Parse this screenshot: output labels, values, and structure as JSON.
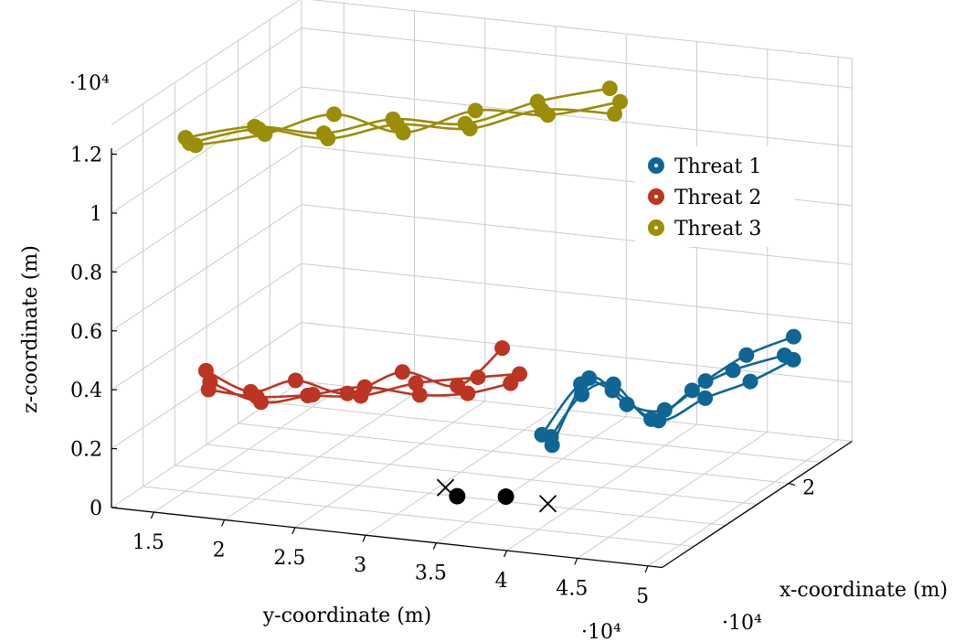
{
  "chart_data": {
    "type": "scatter",
    "subtype": "3d-trajectories",
    "title": "",
    "xlabel": "x-coordinate (m)",
    "ylabel": "y-coordinate (m)",
    "zlabel": "z-coordinate (m)",
    "x_multiplier": "·10⁴",
    "y_multiplier": "·10⁴",
    "z_multiplier": "·10⁴",
    "xlim": [
      0,
      3
    ],
    "ylim": [
      1.2,
      5.1
    ],
    "zlim": [
      0,
      1.3
    ],
    "x_ticks": [
      2
    ],
    "x_tick_labels": [
      "2"
    ],
    "y_ticks": [
      1.5,
      2,
      2.5,
      3,
      3.5,
      4,
      4.5,
      5
    ],
    "y_tick_labels": [
      "1.5",
      "2",
      "2.5",
      "3",
      "3.5",
      "4",
      "4.5",
      "5"
    ],
    "z_ticks": [
      0,
      0.2,
      0.4,
      0.6,
      0.8,
      1,
      1.2
    ],
    "z_tick_labels": [
      "0",
      "0.2",
      "0.4",
      "0.6",
      "0.8",
      "1",
      "1.2"
    ],
    "grid": true,
    "legend_position": "top-right",
    "colors": {
      "threat1": "#0f6694",
      "threat2": "#bb3522",
      "threat3": "#9a8d07",
      "grid": "#cccccc",
      "axis": "#000000"
    },
    "series": [
      {
        "name": "Threat 1",
        "color": "#0f6694",
        "marker": "filled-circle",
        "curves": [
          [
            [
              1.1,
              3.82,
              0.22
            ],
            [
              1.25,
              3.97,
              0.35
            ],
            [
              1.35,
              4.15,
              0.38
            ],
            [
              1.5,
              4.35,
              0.25
            ],
            [
              1.7,
              4.55,
              0.33
            ],
            [
              1.9,
              4.75,
              0.38
            ],
            [
              2.2,
              4.98,
              0.4
            ]
          ],
          [
            [
              1.05,
              3.85,
              0.2
            ],
            [
              1.3,
              4.0,
              0.4
            ],
            [
              1.45,
              4.2,
              0.3
            ],
            [
              1.6,
              4.4,
              0.27
            ],
            [
              1.8,
              4.6,
              0.35
            ],
            [
              2.0,
              4.8,
              0.42
            ],
            [
              2.3,
              5.0,
              0.45
            ]
          ],
          [
            [
              1.0,
              3.8,
              0.24
            ],
            [
              1.28,
              3.95,
              0.38
            ],
            [
              1.4,
              4.12,
              0.35
            ],
            [
              1.55,
              4.38,
              0.24
            ],
            [
              1.75,
              4.62,
              0.3
            ],
            [
              1.95,
              4.85,
              0.34
            ],
            [
              2.25,
              5.02,
              0.38
            ]
          ]
        ]
      },
      {
        "name": "Threat 2",
        "color": "#bb3522",
        "marker": "filled-circle",
        "curves": [
          [
            [
              0.6,
              1.6,
              0.4
            ],
            [
              0.75,
              1.85,
              0.32
            ],
            [
              0.9,
              2.1,
              0.35
            ],
            [
              1.05,
              2.4,
              0.3
            ],
            [
              1.25,
              2.7,
              0.36
            ],
            [
              1.45,
              3.0,
              0.3
            ],
            [
              1.6,
              3.25,
              0.42
            ]
          ],
          [
            [
              0.62,
              1.62,
              0.36
            ],
            [
              0.8,
              1.9,
              0.28
            ],
            [
              0.95,
              2.2,
              0.3
            ],
            [
              1.1,
              2.5,
              0.32
            ],
            [
              1.3,
              2.8,
              0.28
            ],
            [
              1.5,
              3.05,
              0.27
            ],
            [
              1.62,
              3.3,
              0.3
            ]
          ],
          [
            [
              0.64,
              1.6,
              0.33
            ],
            [
              0.78,
              1.88,
              0.3
            ],
            [
              0.98,
              2.15,
              0.29
            ],
            [
              1.15,
              2.45,
              0.28
            ],
            [
              1.35,
              2.75,
              0.31
            ],
            [
              1.55,
              3.1,
              0.32
            ],
            [
              1.65,
              3.35,
              0.33
            ]
          ]
        ]
      },
      {
        "name": "Threat 3",
        "color": "#9a8d07",
        "marker": "filled-circle",
        "curves": [
          [
            [
              0.5,
              1.5,
              1.2
            ],
            [
              0.7,
              1.9,
              1.23
            ],
            [
              0.9,
              2.3,
              1.2
            ],
            [
              1.1,
              2.7,
              1.24
            ],
            [
              1.35,
              3.1,
              1.21
            ],
            [
              1.6,
              3.5,
              1.27
            ],
            [
              1.85,
              3.9,
              1.3
            ]
          ],
          [
            [
              0.55,
              1.55,
              1.17
            ],
            [
              0.75,
              1.95,
              1.2
            ],
            [
              0.95,
              2.35,
              1.26
            ],
            [
              1.15,
              2.75,
              1.19
            ],
            [
              1.4,
              3.15,
              1.25
            ],
            [
              1.65,
              3.55,
              1.22
            ],
            [
              1.9,
              3.95,
              1.25
            ]
          ],
          [
            [
              0.52,
              1.52,
              1.18
            ],
            [
              0.72,
              1.92,
              1.22
            ],
            [
              0.92,
              2.32,
              1.18
            ],
            [
              1.12,
              2.72,
              1.22
            ],
            [
              1.38,
              3.12,
              1.19
            ],
            [
              1.62,
              3.52,
              1.24
            ],
            [
              1.88,
              3.92,
              1.21
            ]
          ]
        ]
      }
    ],
    "markers": [
      {
        "label": "",
        "symbol": "cross",
        "x": 1.05,
        "y": 3.82,
        "z": 0
      },
      {
        "label": "",
        "symbol": "cross",
        "x": 1.15,
        "y": 3.05,
        "z": 0
      },
      {
        "label": "",
        "symbol": "dot",
        "x": 1.0,
        "y": 3.2,
        "z": 0
      },
      {
        "label": "",
        "symbol": "dot",
        "x": 1.1,
        "y": 3.5,
        "z": 0
      }
    ]
  }
}
